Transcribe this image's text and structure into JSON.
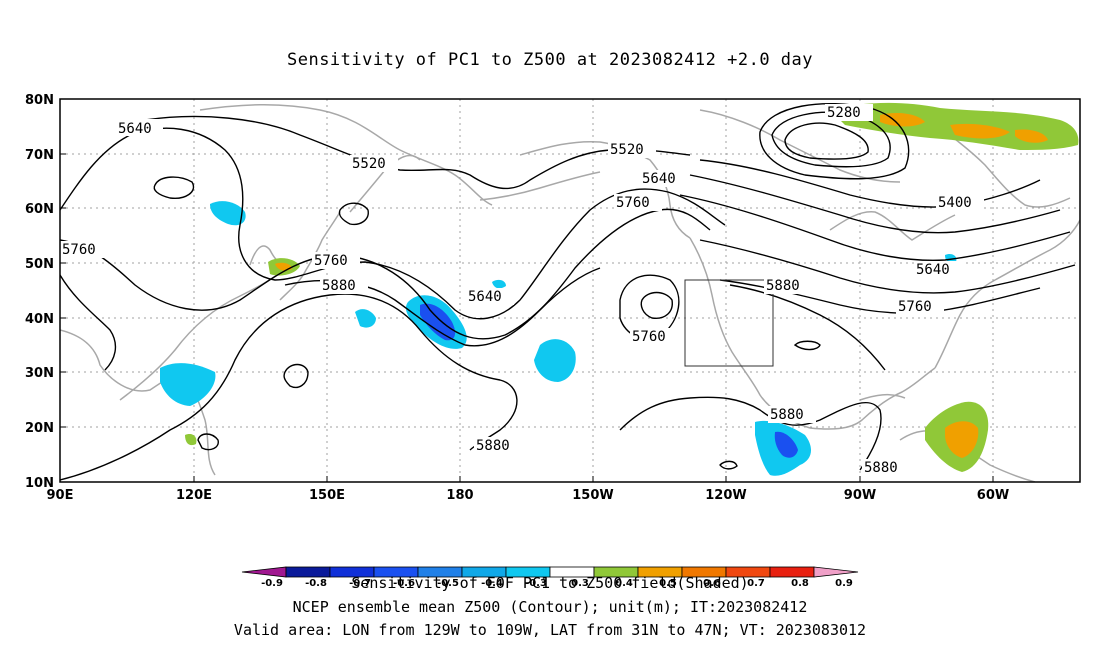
{
  "title": "Sensitivity of PC1 to Z500 at 2023082412 +2.0 day",
  "axes": {
    "lat_labels": [
      "80N",
      "70N",
      "60N",
      "50N",
      "40N",
      "30N",
      "20N",
      "10N"
    ],
    "lon_labels": [
      "90E",
      "120E",
      "150E",
      "180",
      "150W",
      "120W",
      "90W",
      "60W"
    ]
  },
  "contour_labels": [
    "5640",
    "5520",
    "5760",
    "5760",
    "5880",
    "5640",
    "5520",
    "5640",
    "5760",
    "5760",
    "5880",
    "5880",
    "5880",
    "5280",
    "5400",
    "5640",
    "5760",
    "5880"
  ],
  "colorbar": {
    "ticks": [
      "-0.9",
      "-0.8",
      "-0.7",
      "-0.6",
      "-0.5",
      "-0.4",
      "-0.3",
      "0.3",
      "0.4",
      "0.5",
      "0.6",
      "0.7",
      "0.8",
      "0.9"
    ],
    "colors": [
      "#a01890",
      "#0a1a9a",
      "#1030d8",
      "#1a50f0",
      "#2080e8",
      "#10a8e8",
      "#10c8f0",
      "#ffffff",
      "#90c838",
      "#f0a000",
      "#f07800",
      "#f04810",
      "#e82010",
      "#f0a0c8"
    ]
  },
  "captions": [
    "Sensitivity of EOF PC1 to Z500 field(Shaded)",
    "NCEP ensemble mean Z500 (Contour); unit(m); IT:2023082412",
    "Valid area: LON from 129W to 109W, LAT from 31N to 47N; VT: 2023083012"
  ],
  "colors": {
    "contour": "#000000",
    "coast": "#a8a8a8",
    "grid": "#a0a0a0",
    "positive_green": "#90c838",
    "positive_orange": "#f0a000",
    "negative_blue": "#10c8f0",
    "negative_dark": "#1a50f0"
  }
}
